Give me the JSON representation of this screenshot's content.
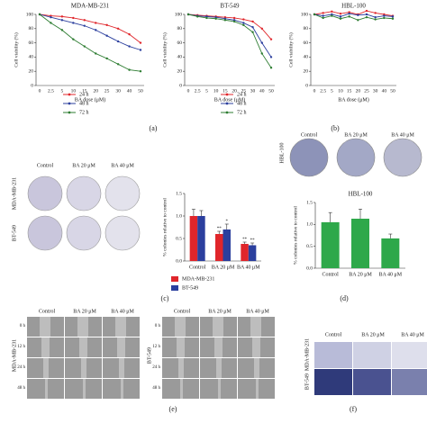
{
  "chart_data": [
    {
      "type": "line",
      "title": "MDA-MB-231",
      "x_label": "BA dose (μM)",
      "y_label": "Cell viability (%)",
      "categories": [
        "0",
        "2.5",
        "5",
        "10",
        "15",
        "20",
        "25",
        "30",
        "40",
        "50"
      ],
      "ylim": [
        0,
        100
      ],
      "yticks": [
        0,
        20,
        40,
        60,
        80,
        100
      ],
      "series": [
        {
          "name": "24 h",
          "color": "#e0262b",
          "values": [
            100,
            98,
            97,
            95,
            92,
            88,
            85,
            80,
            72,
            60
          ]
        },
        {
          "name": "48 h",
          "color": "#2b3f9e",
          "values": [
            100,
            96,
            92,
            88,
            84,
            78,
            70,
            62,
            55,
            50
          ]
        },
        {
          "name": "72 h",
          "color": "#2e7d32",
          "values": [
            100,
            88,
            78,
            65,
            55,
            45,
            38,
            30,
            22,
            20
          ]
        }
      ]
    },
    {
      "type": "line",
      "title": "BT-549",
      "x_label": "BA dose (μM)",
      "y_label": "Cell viability (%)",
      "categories": [
        "0",
        "2.5",
        "5",
        "10",
        "15",
        "20",
        "25",
        "30",
        "40",
        "50"
      ],
      "ylim": [
        0,
        100
      ],
      "yticks": [
        0,
        20,
        40,
        60,
        80,
        100
      ],
      "series": [
        {
          "name": "24 h",
          "color": "#e0262b",
          "values": [
            100,
            99,
            98,
            97,
            96,
            95,
            93,
            90,
            80,
            65
          ]
        },
        {
          "name": "48 h",
          "color": "#2b3f9e",
          "values": [
            100,
            98,
            97,
            96,
            94,
            92,
            88,
            82,
            60,
            40
          ]
        },
        {
          "name": "72 h",
          "color": "#2e7d32",
          "values": [
            100,
            97,
            95,
            94,
            92,
            90,
            85,
            75,
            45,
            25
          ]
        }
      ]
    },
    {
      "type": "line",
      "title": "HBL-100",
      "x_label": "BA dose (μM)",
      "y_label": "Cell viability (%)",
      "categories": [
        "0",
        "2.5",
        "5",
        "10",
        "15",
        "20",
        "25",
        "30",
        "40",
        "50"
      ],
      "ylim": [
        0,
        100
      ],
      "yticks": [
        0,
        20,
        40,
        60,
        80,
        100
      ],
      "series": [
        {
          "name": "24 h",
          "color": "#e0262b",
          "values": [
            100,
            102,
            104,
            101,
            103,
            100,
            105,
            102,
            100,
            98
          ]
        },
        {
          "name": "48 h",
          "color": "#2b3f9e",
          "values": [
            100,
            98,
            100,
            97,
            101,
            99,
            100,
            96,
            98,
            97
          ]
        },
        {
          "name": "72 h",
          "color": "#2e7d32",
          "values": [
            100,
            95,
            98,
            94,
            97,
            92,
            96,
            93,
            95,
            94
          ]
        }
      ]
    },
    {
      "type": "bar",
      "y_label": "% colonies relative to control",
      "categories": [
        "Control",
        "BA 20 μM",
        "BA 40 μM"
      ],
      "ylim": [
        0,
        1.5
      ],
      "yticks": [
        {
          "value": 0,
          "label": "0.0"
        },
        0.5,
        {
          "value": 1,
          "label": "1.0"
        },
        1.5
      ],
      "series": [
        {
          "name": "MDA-MB-231",
          "color": "#e0262b",
          "values": [
            1.0,
            0.6,
            0.38
          ],
          "errors": [
            0.15,
            0.06,
            0.04
          ],
          "significance": [
            null,
            "**",
            "**"
          ]
        },
        {
          "name": "BT-549",
          "color": "#2b3f9e",
          "values": [
            1.0,
            0.7,
            0.35
          ],
          "errors": [
            0.12,
            0.12,
            0.05
          ],
          "significance": [
            null,
            "*",
            "**"
          ]
        }
      ]
    },
    {
      "type": "bar",
      "title": "HBL-100",
      "y_label": "% colonies relative to control",
      "categories": [
        "Control",
        "BA 20 μM",
        "BA 40 μM"
      ],
      "color": "#2ea84a",
      "values": [
        1.05,
        1.13,
        0.68
      ],
      "errors": [
        0.22,
        0.22,
        0.1
      ],
      "ylim": [
        0,
        1.5
      ],
      "yticks": [
        {
          "value": 0,
          "label": "0.0"
        },
        0.5,
        {
          "value": 1,
          "label": "1.0"
        },
        1.5
      ]
    }
  ],
  "panels": {
    "labels": [
      "(a)",
      "(b)",
      "(c)",
      "(d)",
      "(e)",
      "(f)"
    ],
    "colony": {
      "columns": [
        "Control",
        "BA 20 μM",
        "BA 40 μM"
      ],
      "rows": [
        "MDA-MB-231",
        "BT-549"
      ]
    },
    "hbl": {
      "label": "HBL-100",
      "columns": [
        "Control",
        "BA 20 μM",
        "BA 40 μM"
      ]
    },
    "wound": {
      "columns": [
        "Control",
        "BA 20 μM",
        "BA 40 μM"
      ],
      "times": [
        "0 h",
        "12 h",
        "24 h",
        "48 h"
      ],
      "rows": [
        "MDA-MB-231",
        "BT-549"
      ]
    },
    "transwell": {
      "columns": [
        "Control",
        "BA 20 μM",
        "BA 40 μM"
      ],
      "rows": [
        "MDA-MB-231",
        "BT-549"
      ]
    }
  }
}
